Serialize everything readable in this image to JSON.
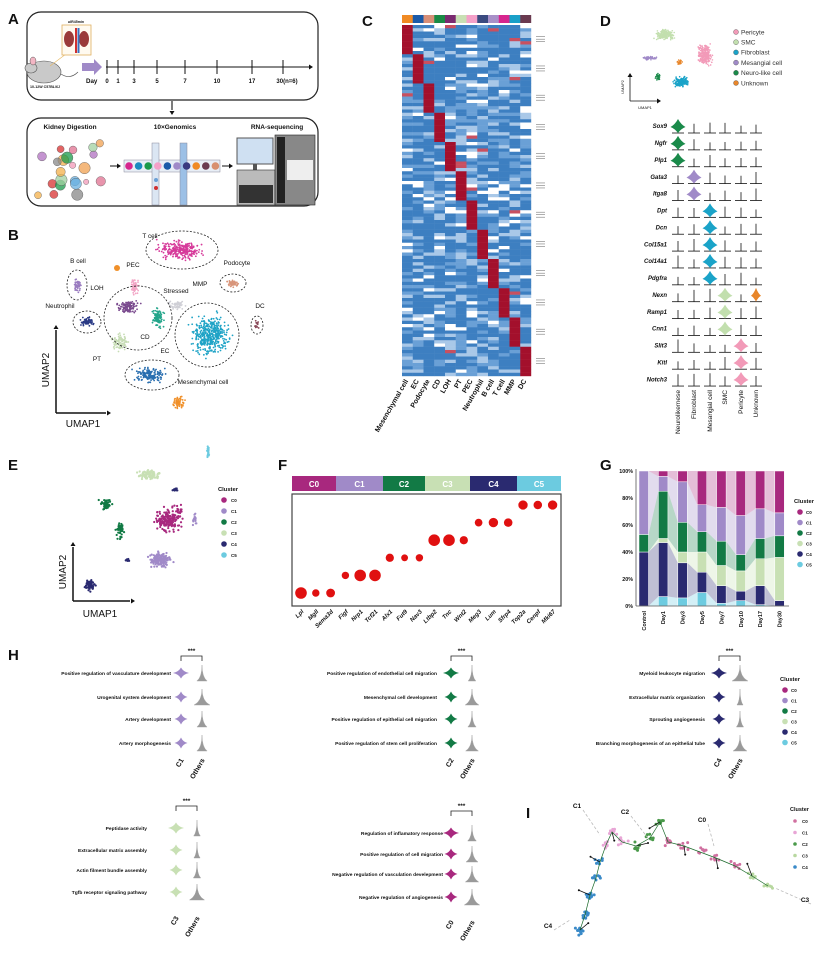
{
  "panel_letters": {
    "a": "A",
    "b": "B",
    "c": "C",
    "d": "D",
    "e": "E",
    "f": "F",
    "g": "G",
    "h": "H",
    "i": "I"
  },
  "panel_a": {
    "surgery_label": "uIR45min",
    "mouse_label": "10-12W C57BL/6J",
    "day_label": "Day",
    "days": [
      "0",
      "1",
      "3",
      "5",
      "7",
      "10",
      "17",
      "30(n=6)"
    ],
    "steps": [
      "Kidney Digestion",
      "10×Genomics",
      "RNA-sequencing"
    ]
  },
  "panel_b": {
    "xlabel": "UMAP1",
    "ylabel": "UMAP2",
    "clusters": [
      {
        "name": "T cell",
        "color": "#d63a9a"
      },
      {
        "name": "B cell",
        "color": "#9a7cc0"
      },
      {
        "name": "PEC",
        "color": "#f2a6c6"
      },
      {
        "name": "Podocyte",
        "color": "#d8957a"
      },
      {
        "name": "LOH",
        "color": "#7a4a8e"
      },
      {
        "name": "Stressed",
        "color": "#cfcfd6"
      },
      {
        "name": "MMP",
        "color": "#1ea3c6"
      },
      {
        "name": "DC",
        "color": "#8a4a5a"
      },
      {
        "name": "Neutrophil",
        "color": "#2a3a86"
      },
      {
        "name": "CD",
        "color": "#23a58a"
      },
      {
        "name": "PT",
        "color": "#c6dcb4"
      },
      {
        "name": "EC",
        "color": "#2a6fb0"
      },
      {
        "name": "Mesenchymal cell",
        "color": "#f0902a"
      }
    ]
  },
  "panel_c": {
    "columns": [
      "Mesenchymal cell",
      "EC",
      "Podocyte",
      "CD",
      "LOH",
      "PT",
      "PEC",
      "Neutrophil",
      "B cell",
      "T cell",
      "MMP",
      "DC"
    ],
    "column_colors": [
      "#f08a24",
      "#1a5aa8",
      "#d88f78",
      "#1a8a45",
      "#7a2a70",
      "#c8e0b4",
      "#f4a0c8",
      "#3a4a80",
      "#a890c8",
      "#d6268e",
      "#1aa0c8",
      "#6a3a50"
    ],
    "high_color": "#a3102c",
    "low_colors": [
      "#3d7fc1",
      "#6aa0d6",
      "#a9c8e8",
      "#ffffff"
    ]
  },
  "panel_d": {
    "xlabel": "UMAP1",
    "ylabel": "UMAP2",
    "legend": [
      {
        "name": "Pericyte",
        "color": "#f29ab8"
      },
      {
        "name": "SMC",
        "color": "#c2dfae"
      },
      {
        "name": "Fibroblast",
        "color": "#1aa3c8"
      },
      {
        "name": "Mesangial cell",
        "color": "#a08ac8"
      },
      {
        "name": "Neuro-like cell",
        "color": "#1a8a4a"
      },
      {
        "name": "Unknown",
        "color": "#e8862a"
      }
    ],
    "columns": [
      {
        "name": "Neurolikemese",
        "color": "#1a8a4a"
      },
      {
        "name": "Fibroblast",
        "color": "#a08ac8"
      },
      {
        "name": "Mesangial cell",
        "color": "#1aa3c8"
      },
      {
        "name": "SMC",
        "color": "#c2dfae"
      },
      {
        "name": "Pericyte",
        "color": "#f29ab8"
      },
      {
        "name": "Unknown",
        "color": "#e8862a"
      }
    ],
    "genes": [
      {
        "name": "Sox9",
        "high_in": [
          "Neurolikemese"
        ]
      },
      {
        "name": "Ngfr",
        "high_in": [
          "Neurolikemese"
        ]
      },
      {
        "name": "Plp1",
        "high_in": [
          "Neurolikemese"
        ]
      },
      {
        "name": "Gata3",
        "high_in": [
          "Fibroblast"
        ]
      },
      {
        "name": "Itga8",
        "high_in": [
          "Fibroblast"
        ]
      },
      {
        "name": "Dpt",
        "high_in": [
          "Mesangial cell"
        ]
      },
      {
        "name": "Dcn",
        "high_in": [
          "Mesangial cell"
        ]
      },
      {
        "name": "Col15a1",
        "high_in": [
          "Mesangial cell"
        ]
      },
      {
        "name": "Col14a1",
        "high_in": [
          "Mesangial cell"
        ]
      },
      {
        "name": "Pdgfra",
        "high_in": [
          "Mesangial cell"
        ]
      },
      {
        "name": "Nexn",
        "high_in": [
          "SMC",
          "Unknown"
        ]
      },
      {
        "name": "Ramp1",
        "high_in": [
          "SMC"
        ]
      },
      {
        "name": "Cnn1",
        "high_in": [
          "SMC"
        ]
      },
      {
        "name": "Slit3",
        "high_in": [
          "Pericyte"
        ]
      },
      {
        "name": "Kitl",
        "high_in": [
          "Pericyte"
        ]
      },
      {
        "name": "Notch3",
        "high_in": [
          "Pericyte"
        ]
      }
    ]
  },
  "panel_e": {
    "xlabel": "UMAP1",
    "ylabel": "UMAP2",
    "legend_title": "Cluster",
    "clusters": [
      {
        "name": "C0",
        "color": "#a8287e"
      },
      {
        "name": "C1",
        "color": "#a08ac8"
      },
      {
        "name": "C2",
        "color": "#127a45"
      },
      {
        "name": "C3",
        "color": "#c8e0b4"
      },
      {
        "name": "C4",
        "color": "#2a2a70"
      },
      {
        "name": "C5",
        "color": "#6ccbe0"
      }
    ]
  },
  "chart_data": [
    {
      "panel": "F",
      "type": "scatter",
      "groups": [
        {
          "name": "C0",
          "color": "#a8287e",
          "genes": [
            "Lpl",
            "Mgll",
            "Sema3d"
          ],
          "relative_dot_size": [
            3,
            1.5,
            2
          ]
        },
        {
          "name": "C1",
          "color": "#a08ac8",
          "genes": [
            "Figf",
            "Nrp1",
            "Tcf21"
          ],
          "relative_dot_size": [
            1.5,
            3,
            3
          ]
        },
        {
          "name": "C2",
          "color": "#127a45",
          "genes": [
            "Alx1",
            "Fut9",
            "Nav3"
          ],
          "relative_dot_size": [
            1.8,
            1.3,
            1.5
          ]
        },
        {
          "name": "C3",
          "color": "#c8e0b4",
          "genes": [
            "Ltbp2",
            "Tnc",
            "Wnt2"
          ],
          "relative_dot_size": [
            3,
            3,
            1.8
          ]
        },
        {
          "name": "C4",
          "color": "#2a2a70",
          "genes": [
            "Meg3",
            "Lum",
            "Sfrp4"
          ],
          "relative_dot_size": [
            1.6,
            2.2,
            1.9
          ]
        },
        {
          "name": "C5",
          "color": "#6ccbe0",
          "genes": [
            "Top2a",
            "Cenpf",
            "Mki67"
          ],
          "relative_dot_size": [
            2.2,
            1.9,
            2.2
          ]
        }
      ],
      "dot_color": "#e01010"
    },
    {
      "panel": "G",
      "type": "bar",
      "stacked": true,
      "categories": [
        "Control",
        "Day1",
        "Day3",
        "Day5",
        "Day7",
        "Day10",
        "Day17",
        "Day30"
      ],
      "yticks": [
        "0%",
        "20%",
        "40%",
        "60%",
        "80%",
        "100%"
      ],
      "ylim": [
        0,
        100
      ],
      "legend_title": "Cluster",
      "legend_position": "right",
      "series": [
        {
          "name": "C5",
          "color": "#6ccbe0",
          "values": [
            0,
            7,
            6,
            10,
            2,
            4,
            1,
            0
          ]
        },
        {
          "name": "C4",
          "color": "#2a2a70",
          "values": [
            40,
            40,
            26,
            15,
            13,
            7,
            14,
            4
          ]
        },
        {
          "name": "C3",
          "color": "#c8e0b4",
          "values": [
            0,
            3,
            8,
            15,
            15,
            15,
            20,
            32
          ]
        },
        {
          "name": "C2",
          "color": "#127a45",
          "values": [
            13,
            35,
            22,
            15,
            18,
            12,
            15,
            16
          ]
        },
        {
          "name": "C1",
          "color": "#a08ac8",
          "values": [
            47,
            11,
            30,
            20,
            25,
            29,
            22,
            17
          ]
        },
        {
          "name": "C0",
          "color": "#a8287e",
          "values": [
            0,
            4,
            8,
            25,
            27,
            33,
            28,
            31
          ]
        }
      ]
    }
  ],
  "panel_h": {
    "legend_title": "Cluster",
    "legend": [
      {
        "name": "C0",
        "color": "#a8287e"
      },
      {
        "name": "C1",
        "color": "#a08ac8"
      },
      {
        "name": "C2",
        "color": "#127a45"
      },
      {
        "name": "C3",
        "color": "#c8e0b4"
      },
      {
        "name": "C4",
        "color": "#2a2a70"
      },
      {
        "name": "C5",
        "color": "#6ccbe0"
      }
    ],
    "panels": [
      {
        "cluster": "C1",
        "color": "#a08ac8",
        "others": "Others",
        "sig": "***",
        "terms": [
          "Positive regulation  of vasculature development",
          "Urogenital system development",
          "Artery development",
          "Artery morphogenesis"
        ]
      },
      {
        "cluster": "C2",
        "color": "#127a45",
        "others": "Others",
        "sig": "***",
        "terms": [
          "Positive regulation  of endothelial cell migration",
          "Mesenchymal cell development",
          "Positive regulation  of  epithelial cell migration",
          "Positive regulation  of  stem cell proliferation"
        ]
      },
      {
        "cluster": "C4",
        "color": "#2a2a70",
        "others": "Others",
        "sig": "***",
        "terms": [
          "Myeloid leukocyte migration",
          "Extracellular matrix organization",
          "Sprouting angiogenesis",
          "Branching morphogenesis of an epithelial tube"
        ]
      },
      {
        "cluster": "C3",
        "color": "#c8e0b4",
        "others": "Others",
        "sig": "***",
        "terms": [
          "Peptidase activity",
          "Extracellular matrix assembly",
          "Actin filment bundle assembly",
          "Tgfb receptor signaling pathway"
        ]
      },
      {
        "cluster": "C0",
        "color": "#a8287e",
        "others": "Others",
        "sig": "***",
        "terms": [
          "Regulation  of inflamatory response",
          "Positive regulation of cell migration",
          "Negative regulation of vasculation develepment",
          "Negative regulation of angiogenesis"
        ]
      }
    ]
  },
  "panel_i": {
    "legend_title": "Cluster",
    "clusters": [
      {
        "name": "C0",
        "color": "#d070a0"
      },
      {
        "name": "C1",
        "color": "#e8a6d6"
      },
      {
        "name": "C2",
        "color": "#4a9a4a"
      },
      {
        "name": "C3",
        "color": "#b8d8a0"
      },
      {
        "name": "C4",
        "color": "#3a8ac8"
      }
    ],
    "branch_labels": [
      "C1",
      "C2",
      "C0",
      "C3",
      "C4"
    ]
  }
}
